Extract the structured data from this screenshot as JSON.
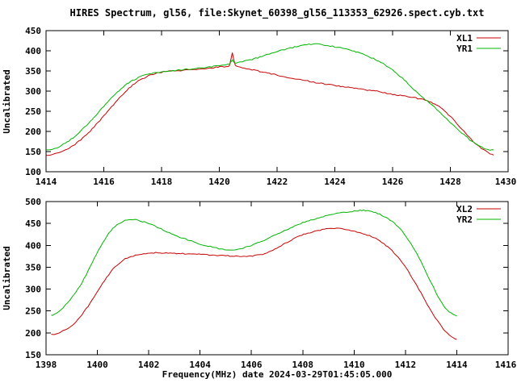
{
  "title": "HIRES Spectrum, gl56, file:Skynet_60398_gl56_113353_62926.spect.cyb.txt",
  "colors": {
    "background": "#ffffff",
    "frame": "#000000",
    "text": "#000000",
    "series_red": "#c80000",
    "series_green": "#00b400"
  },
  "chart_data": {
    "type": "line",
    "grid": false,
    "legend_position": "top-right-inside",
    "panels": [
      {
        "ylabel": "Uncalibrated",
        "xlim": [
          1414,
          1430
        ],
        "ylim": [
          100,
          450
        ],
        "xticks": [
          1414,
          1416,
          1418,
          1420,
          1422,
          1424,
          1426,
          1428,
          1430
        ],
        "yticks": [
          100,
          150,
          200,
          250,
          300,
          350,
          400,
          450
        ],
        "series": [
          {
            "name": "XL1",
            "color": "#c80000",
            "points": [
              [
                1414,
                140
              ],
              [
                1414.3,
                144
              ],
              [
                1414.6,
                152
              ],
              [
                1415,
                168
              ],
              [
                1415.4,
                192
              ],
              [
                1415.8,
                222
              ],
              [
                1416.2,
                255
              ],
              [
                1416.6,
                288
              ],
              [
                1417,
                315
              ],
              [
                1417.4,
                333
              ],
              [
                1417.8,
                344
              ],
              [
                1418.2,
                349
              ],
              [
                1418.6,
                351
              ],
              [
                1419,
                353
              ],
              [
                1419.4,
                355
              ],
              [
                1419.8,
                358
              ],
              [
                1420.1,
                361
              ],
              [
                1420.35,
                363
              ],
              [
                1420.45,
                395
              ],
              [
                1420.55,
                365
              ],
              [
                1420.8,
                358
              ],
              [
                1421.2,
                352
              ],
              [
                1421.6,
                346
              ],
              [
                1422,
                340
              ],
              [
                1422.4,
                334
              ],
              [
                1422.8,
                329
              ],
              [
                1423.2,
                323
              ],
              [
                1423.6,
                318
              ],
              [
                1424,
                314
              ],
              [
                1424.4,
                310
              ],
              [
                1424.8,
                306
              ],
              [
                1425.2,
                302
              ],
              [
                1425.6,
                298
              ],
              [
                1426,
                292
              ],
              [
                1426.4,
                288
              ],
              [
                1426.8,
                283
              ],
              [
                1427.2,
                276
              ],
              [
                1427.6,
                262
              ],
              [
                1428,
                237
              ],
              [
                1428.4,
                205
              ],
              [
                1428.8,
                175
              ],
              [
                1429.2,
                152
              ],
              [
                1429.5,
                141
              ]
            ]
          },
          {
            "name": "YR1",
            "color": "#00b400",
            "points": [
              [
                1414,
                153
              ],
              [
                1414.3,
                158
              ],
              [
                1414.6,
                168
              ],
              [
                1415,
                188
              ],
              [
                1415.4,
                215
              ],
              [
                1415.8,
                246
              ],
              [
                1416.2,
                278
              ],
              [
                1416.6,
                306
              ],
              [
                1417,
                326
              ],
              [
                1417.4,
                339
              ],
              [
                1417.8,
                346
              ],
              [
                1418.2,
                350
              ],
              [
                1418.6,
                352
              ],
              [
                1419,
                355
              ],
              [
                1419.4,
                358
              ],
              [
                1419.8,
                361
              ],
              [
                1420.1,
                364
              ],
              [
                1420.35,
                367
              ],
              [
                1420.45,
                377
              ],
              [
                1420.55,
                370
              ],
              [
                1420.8,
                373
              ],
              [
                1421.2,
                380
              ],
              [
                1421.6,
                389
              ],
              [
                1422,
                398
              ],
              [
                1422.4,
                406
              ],
              [
                1422.8,
                412
              ],
              [
                1423.1,
                416
              ],
              [
                1423.4,
                417
              ],
              [
                1423.7,
                414
              ],
              [
                1424,
                410
              ],
              [
                1424.4,
                404
              ],
              [
                1424.8,
                396
              ],
              [
                1425.2,
                385
              ],
              [
                1425.6,
                371
              ],
              [
                1426,
                352
              ],
              [
                1426.4,
                328
              ],
              [
                1426.8,
                300
              ],
              [
                1427.2,
                275
              ],
              [
                1427.6,
                250
              ],
              [
                1428,
                222
              ],
              [
                1428.4,
                196
              ],
              [
                1428.8,
                173
              ],
              [
                1429.2,
                157
              ],
              [
                1429.5,
                154
              ]
            ]
          }
        ]
      },
      {
        "ylabel": "Uncalibrated",
        "xlabel": "Frequency(MHz) date 2024-03-29T01:45:05.000",
        "xlim": [
          1398,
          1416
        ],
        "ylim": [
          150,
          500
        ],
        "xticks": [
          1398,
          1400,
          1402,
          1404,
          1406,
          1408,
          1410,
          1412,
          1414,
          1416
        ],
        "yticks": [
          150,
          200,
          250,
          300,
          350,
          400,
          450,
          500
        ],
        "series": [
          {
            "name": "XL2",
            "color": "#c80000",
            "points": [
              [
                1398.2,
                196
              ],
              [
                1398.5,
                200
              ],
              [
                1399,
                216
              ],
              [
                1399.4,
                242
              ],
              [
                1399.8,
                275
              ],
              [
                1400.2,
                312
              ],
              [
                1400.6,
                345
              ],
              [
                1401,
                366
              ],
              [
                1401.4,
                376
              ],
              [
                1401.8,
                381
              ],
              [
                1402.2,
                383
              ],
              [
                1402.6,
                383
              ],
              [
                1403,
                382
              ],
              [
                1403.4,
                381
              ],
              [
                1403.8,
                380
              ],
              [
                1404.2,
                379
              ],
              [
                1404.6,
                377
              ],
              [
                1405,
                376
              ],
              [
                1405.4,
                375
              ],
              [
                1405.8,
                375
              ],
              [
                1406.2,
                377
              ],
              [
                1406.6,
                383
              ],
              [
                1407,
                394
              ],
              [
                1407.4,
                407
              ],
              [
                1407.8,
                419
              ],
              [
                1408.2,
                428
              ],
              [
                1408.6,
                434
              ],
              [
                1409,
                438
              ],
              [
                1409.4,
                438
              ],
              [
                1409.8,
                434
              ],
              [
                1410.2,
                429
              ],
              [
                1410.6,
                422
              ],
              [
                1411,
                410
              ],
              [
                1411.4,
                392
              ],
              [
                1411.8,
                366
              ],
              [
                1412.2,
                332
              ],
              [
                1412.6,
                292
              ],
              [
                1413,
                250
              ],
              [
                1413.4,
                215
              ],
              [
                1413.7,
                196
              ],
              [
                1414,
                185
              ]
            ]
          },
          {
            "name": "YR2",
            "color": "#00b400",
            "points": [
              [
                1398.2,
                240
              ],
              [
                1398.5,
                248
              ],
              [
                1399,
                280
              ],
              [
                1399.4,
                315
              ],
              [
                1399.8,
                360
              ],
              [
                1400.2,
                405
              ],
              [
                1400.6,
                438
              ],
              [
                1401,
                455
              ],
              [
                1401.3,
                459
              ],
              [
                1401.6,
                457
              ],
              [
                1402,
                450
              ],
              [
                1402.4,
                440
              ],
              [
                1402.8,
                429
              ],
              [
                1403.2,
                419
              ],
              [
                1403.6,
                411
              ],
              [
                1404,
                403
              ],
              [
                1404.4,
                397
              ],
              [
                1404.8,
                392
              ],
              [
                1405.2,
                390
              ],
              [
                1405.6,
                393
              ],
              [
                1406,
                400
              ],
              [
                1406.4,
                409
              ],
              [
                1406.8,
                420
              ],
              [
                1407.2,
                431
              ],
              [
                1407.6,
                442
              ],
              [
                1408,
                452
              ],
              [
                1408.4,
                459
              ],
              [
                1408.8,
                466
              ],
              [
                1409.2,
                471
              ],
              [
                1409.6,
                475
              ],
              [
                1410,
                478
              ],
              [
                1410.3,
                480
              ],
              [
                1410.6,
                478
              ],
              [
                1411,
                471
              ],
              [
                1411.4,
                458
              ],
              [
                1411.8,
                437
              ],
              [
                1412.2,
                405
              ],
              [
                1412.6,
                363
              ],
              [
                1413,
                315
              ],
              [
                1413.4,
                270
              ],
              [
                1413.7,
                248
              ],
              [
                1414,
                238
              ]
            ]
          }
        ]
      }
    ]
  }
}
